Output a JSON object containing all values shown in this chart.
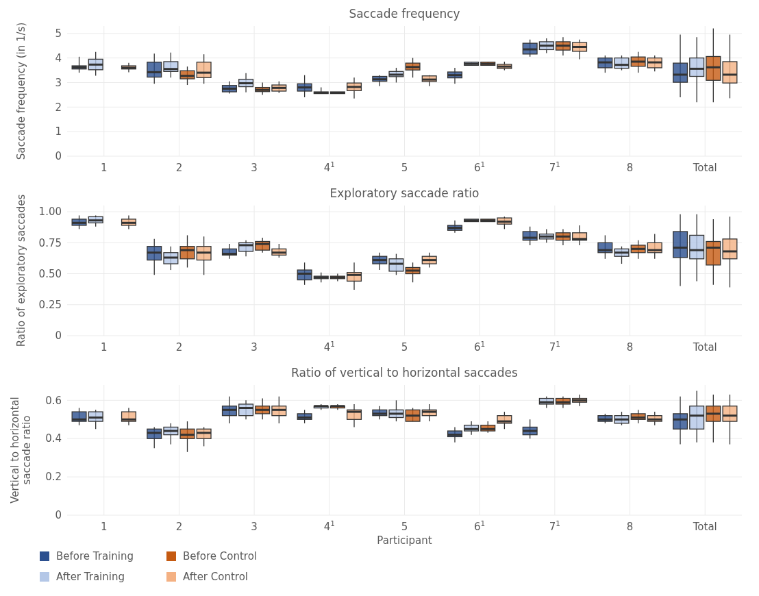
{
  "chart_data": [
    {
      "type": "box",
      "title": "Saccade frequency",
      "ylabel": "Saccade frequency (in 1/s)",
      "categories": [
        "1",
        "2",
        "3",
        "4$^{1}$",
        "5",
        "6$^{1}$",
        "7$^{1}$",
        "8",
        "Total"
      ],
      "ylim": [
        0,
        5.3
      ],
      "yticks": [
        0,
        1,
        2,
        3,
        4,
        5
      ],
      "grid": true,
      "legend": false,
      "series": [
        {
          "color": "#2b4f8f",
          "boxes": [
            {
              "low": 3.4,
              "q1": 3.55,
              "median": 3.62,
              "q3": 3.68,
              "high": 4.05
            },
            {
              "low": 2.95,
              "q1": 3.22,
              "median": 3.42,
              "q3": 3.83,
              "high": 4.18
            },
            {
              "low": 2.55,
              "q1": 2.62,
              "median": 2.75,
              "q3": 2.88,
              "high": 3.05
            },
            {
              "low": 2.4,
              "q1": 2.65,
              "median": 2.8,
              "q3": 2.95,
              "high": 3.3
            },
            {
              "low": 2.85,
              "q1": 3.05,
              "median": 3.13,
              "q3": 3.25,
              "high": 3.3
            },
            {
              "low": 2.95,
              "q1": 3.19,
              "median": 3.3,
              "q3": 3.43,
              "high": 3.6
            },
            {
              "low": 4.05,
              "q1": 4.16,
              "median": 4.35,
              "q3": 4.6,
              "high": 4.75
            },
            {
              "low": 3.4,
              "q1": 3.6,
              "median": 3.82,
              "q3": 4.0,
              "high": 4.1
            },
            {
              "low": 2.4,
              "q1": 3.01,
              "median": 3.32,
              "q3": 3.79,
              "high": 4.95
            }
          ]
        },
        {
          "color": "#b4c7e7",
          "boxes": [
            {
              "low": 3.28,
              "q1": 3.52,
              "median": 3.73,
              "q3": 3.95,
              "high": 4.25
            },
            {
              "low": 3.2,
              "q1": 3.45,
              "median": 3.55,
              "q3": 3.85,
              "high": 4.22
            },
            {
              "low": 2.6,
              "q1": 2.83,
              "median": 2.97,
              "q3": 3.13,
              "high": 3.38
            },
            {
              "low": 2.55,
              "q1": 2.55,
              "median": 2.58,
              "q3": 2.62,
              "high": 2.8
            },
            {
              "low": 3.0,
              "q1": 3.24,
              "median": 3.32,
              "q3": 3.45,
              "high": 3.6
            },
            {
              "low": 3.7,
              "q1": 3.7,
              "median": 3.76,
              "q3": 3.83,
              "high": 3.85
            },
            {
              "low": 4.2,
              "q1": 4.34,
              "median": 4.5,
              "q3": 4.66,
              "high": 4.8
            },
            {
              "low": 3.5,
              "q1": 3.58,
              "median": 3.72,
              "q3": 4.0,
              "high": 4.1
            },
            {
              "low": 2.2,
              "q1": 3.25,
              "median": 3.56,
              "q3": 4.0,
              "high": 4.85
            }
          ]
        },
        {
          "color": "#c55a11",
          "boxes": [
            null,
            {
              "low": 2.9,
              "q1": 3.15,
              "median": 3.27,
              "q3": 3.48,
              "high": 3.65
            },
            {
              "low": 2.5,
              "q1": 2.63,
              "median": 2.7,
              "q3": 2.8,
              "high": 3.0
            },
            {
              "low": 2.55,
              "q1": 2.55,
              "median": 2.58,
              "q3": 2.62,
              "high": 2.62
            },
            {
              "low": 3.2,
              "q1": 3.51,
              "median": 3.63,
              "q3": 3.79,
              "high": 4.0
            },
            {
              "low": 3.7,
              "q1": 3.7,
              "median": 3.76,
              "q3": 3.83,
              "high": 3.85
            },
            {
              "low": 4.1,
              "q1": 4.32,
              "median": 4.5,
              "q3": 4.66,
              "high": 4.85
            },
            {
              "low": 3.4,
              "q1": 3.66,
              "median": 3.85,
              "q3": 4.04,
              "high": 4.25
            },
            {
              "low": 2.2,
              "q1": 3.09,
              "median": 3.62,
              "q3": 4.06,
              "high": 5.2
            }
          ]
        },
        {
          "color": "#f4b183",
          "boxes": [
            {
              "low": 3.42,
              "q1": 3.55,
              "median": 3.6,
              "q3": 3.68,
              "high": 3.8
            },
            {
              "low": 2.95,
              "q1": 3.2,
              "median": 3.4,
              "q3": 3.83,
              "high": 4.15
            },
            {
              "low": 2.57,
              "q1": 2.65,
              "median": 2.78,
              "q3": 2.9,
              "high": 3.05
            },
            {
              "low": 2.35,
              "q1": 2.67,
              "median": 2.82,
              "q3": 2.98,
              "high": 3.2
            },
            {
              "low": 2.85,
              "q1": 3.04,
              "median": 3.12,
              "q3": 3.27,
              "high": 3.3
            },
            {
              "low": 3.5,
              "q1": 3.57,
              "median": 3.65,
              "q3": 3.74,
              "high": 3.85
            },
            {
              "low": 3.95,
              "q1": 4.27,
              "median": 4.45,
              "q3": 4.63,
              "high": 4.75
            },
            {
              "low": 3.45,
              "q1": 3.6,
              "median": 3.82,
              "q3": 4.0,
              "high": 4.1
            },
            {
              "low": 2.36,
              "q1": 2.98,
              "median": 3.32,
              "q3": 3.85,
              "high": 4.95
            }
          ]
        }
      ]
    },
    {
      "type": "box",
      "title": "Exploratory saccade ratio",
      "ylabel": "Ratio of exploratory saccades",
      "categories": [
        "1",
        "2",
        "3",
        "4$^{1}$",
        "5",
        "6$^{1}$",
        "7$^{1}$",
        "8",
        "Total"
      ],
      "ylim": [
        0,
        1.05
      ],
      "yticks": [
        0,
        {
          "value": 0.25,
          "label": "0.25"
        },
        {
          "value": 0.5,
          "label": "0.50"
        },
        {
          "value": 0.75,
          "label": "0.75"
        },
        {
          "value": 1,
          "label": "1.00"
        }
      ],
      "grid": true,
      "legend": false,
      "series": [
        {
          "color": "#2b4f8f",
          "boxes": [
            {
              "low": 0.86,
              "q1": 0.89,
              "median": 0.91,
              "q3": 0.94,
              "high": 0.97
            },
            {
              "low": 0.49,
              "q1": 0.61,
              "median": 0.67,
              "q3": 0.72,
              "high": 0.78
            },
            {
              "low": 0.62,
              "q1": 0.65,
              "median": 0.66,
              "q3": 0.7,
              "high": 0.74
            },
            {
              "low": 0.41,
              "q1": 0.45,
              "median": 0.5,
              "q3": 0.53,
              "high": 0.59
            },
            {
              "low": 0.53,
              "q1": 0.58,
              "median": 0.61,
              "q3": 0.64,
              "high": 0.67
            },
            {
              "low": 0.83,
              "q1": 0.85,
              "median": 0.87,
              "q3": 0.89,
              "high": 0.93
            },
            {
              "low": 0.73,
              "q1": 0.77,
              "median": 0.79,
              "q3": 0.84,
              "high": 0.88
            },
            {
              "low": 0.62,
              "q1": 0.67,
              "median": 0.69,
              "q3": 0.75,
              "high": 0.81
            },
            {
              "low": 0.4,
              "q1": 0.63,
              "median": 0.71,
              "q3": 0.84,
              "high": 0.98
            }
          ]
        },
        {
          "color": "#b4c7e7",
          "boxes": [
            {
              "low": 0.88,
              "q1": 0.91,
              "median": 0.93,
              "q3": 0.96,
              "high": 0.97
            },
            {
              "low": 0.53,
              "q1": 0.58,
              "median": 0.63,
              "q3": 0.67,
              "high": 0.72
            },
            {
              "low": 0.64,
              "q1": 0.68,
              "median": 0.73,
              "q3": 0.75,
              "high": 0.77
            },
            {
              "low": 0.43,
              "q1": 0.46,
              "median": 0.47,
              "q3": 0.48,
              "high": 0.51
            },
            {
              "low": 0.49,
              "q1": 0.52,
              "median": 0.58,
              "q3": 0.62,
              "high": 0.66
            },
            {
              "low": 0.92,
              "q1": 0.92,
              "median": 0.93,
              "q3": 0.94,
              "high": 0.94
            },
            {
              "low": 0.75,
              "q1": 0.78,
              "median": 0.8,
              "q3": 0.82,
              "high": 0.86
            },
            {
              "low": 0.58,
              "q1": 0.64,
              "median": 0.67,
              "q3": 0.7,
              "high": 0.72
            },
            {
              "low": 0.44,
              "q1": 0.62,
              "median": 0.69,
              "q3": 0.81,
              "high": 0.98
            }
          ]
        },
        {
          "color": "#c55a11",
          "boxes": [
            null,
            {
              "low": 0.55,
              "q1": 0.62,
              "median": 0.69,
              "q3": 0.72,
              "high": 0.81
            },
            {
              "low": 0.67,
              "q1": 0.69,
              "median": 0.74,
              "q3": 0.76,
              "high": 0.79
            },
            {
              "low": 0.44,
              "q1": 0.46,
              "median": 0.47,
              "q3": 0.48,
              "high": 0.5
            },
            {
              "low": 0.43,
              "q1": 0.5,
              "median": 0.525,
              "q3": 0.55,
              "high": 0.59
            },
            {
              "low": 0.92,
              "q1": 0.92,
              "median": 0.93,
              "q3": 0.94,
              "high": 0.94
            },
            {
              "low": 0.73,
              "q1": 0.77,
              "median": 0.8,
              "q3": 0.83,
              "high": 0.86
            },
            {
              "low": 0.62,
              "q1": 0.67,
              "median": 0.7,
              "q3": 0.73,
              "high": 0.77
            },
            {
              "low": 0.41,
              "q1": 0.57,
              "median": 0.71,
              "q3": 0.76,
              "high": 0.94
            }
          ]
        },
        {
          "color": "#f4b183",
          "boxes": [
            {
              "low": 0.86,
              "q1": 0.89,
              "median": 0.91,
              "q3": 0.94,
              "high": 0.97
            },
            {
              "low": 0.49,
              "q1": 0.61,
              "median": 0.67,
              "q3": 0.72,
              "high": 0.8
            },
            {
              "low": 0.63,
              "q1": 0.65,
              "median": 0.67,
              "q3": 0.7,
              "high": 0.74
            },
            {
              "low": 0.37,
              "q1": 0.44,
              "median": 0.49,
              "q3": 0.51,
              "high": 0.59
            },
            {
              "low": 0.55,
              "q1": 0.58,
              "median": 0.61,
              "q3": 0.64,
              "high": 0.67
            },
            {
              "low": 0.86,
              "q1": 0.9,
              "median": 0.92,
              "q3": 0.95,
              "high": 0.96
            },
            {
              "low": 0.73,
              "q1": 0.77,
              "median": 0.78,
              "q3": 0.83,
              "high": 0.89
            },
            {
              "low": 0.62,
              "q1": 0.67,
              "median": 0.69,
              "q3": 0.75,
              "high": 0.82
            },
            {
              "low": 0.39,
              "q1": 0.62,
              "median": 0.68,
              "q3": 0.78,
              "high": 0.96
            }
          ]
        }
      ]
    },
    {
      "type": "box",
      "title": "Ratio of vertical to horizontal saccades",
      "ylabel": "Vertical to horizontal saccade ratio",
      "xlabel": "Participant",
      "categories": [
        "1",
        "2",
        "3",
        "4$^{1}$",
        "5",
        "6$^{1}$",
        "7$^{1}$",
        "8",
        "Total"
      ],
      "ylim": [
        0,
        0.68
      ],
      "yticks": [
        0,
        0.2,
        0.4,
        0.6
      ],
      "grid": true,
      "legend": "bottom",
      "series": [
        {
          "name": "Before Training",
          "color": "#2b4f8f",
          "boxes": [
            {
              "low": 0.47,
              "q1": 0.49,
              "median": 0.5,
              "q3": 0.54,
              "high": 0.56
            },
            {
              "low": 0.35,
              "q1": 0.4,
              "median": 0.43,
              "q3": 0.45,
              "high": 0.46
            },
            {
              "low": 0.48,
              "q1": 0.52,
              "median": 0.55,
              "q3": 0.57,
              "high": 0.62
            },
            {
              "low": 0.48,
              "q1": 0.5,
              "median": 0.51,
              "q3": 0.53,
              "high": 0.55
            },
            {
              "low": 0.5,
              "q1": 0.52,
              "median": 0.53,
              "q3": 0.55,
              "high": 0.57
            },
            {
              "low": 0.38,
              "q1": 0.41,
              "median": 0.42,
              "q3": 0.44,
              "high": 0.46
            },
            {
              "low": 0.4,
              "q1": 0.42,
              "median": 0.44,
              "q3": 0.46,
              "high": 0.5
            },
            {
              "low": 0.48,
              "q1": 0.49,
              "median": 0.5,
              "q3": 0.52,
              "high": 0.53
            },
            {
              "low": 0.37,
              "q1": 0.45,
              "median": 0.5,
              "q3": 0.53,
              "high": 0.62
            }
          ]
        },
        {
          "name": "After Training",
          "color": "#b4c7e7",
          "boxes": [
            {
              "low": 0.45,
              "q1": 0.49,
              "median": 0.51,
              "q3": 0.54,
              "high": 0.55
            },
            {
              "low": 0.37,
              "q1": 0.42,
              "median": 0.44,
              "q3": 0.46,
              "high": 0.48
            },
            {
              "low": 0.5,
              "q1": 0.52,
              "median": 0.56,
              "q3": 0.58,
              "high": 0.6
            },
            {
              "low": 0.55,
              "q1": 0.56,
              "median": 0.57,
              "q3": 0.57,
              "high": 0.58
            },
            {
              "low": 0.49,
              "q1": 0.51,
              "median": 0.53,
              "q3": 0.55,
              "high": 0.6
            },
            {
              "low": 0.42,
              "q1": 0.44,
              "median": 0.45,
              "q3": 0.47,
              "high": 0.49
            },
            {
              "low": 0.56,
              "q1": 0.58,
              "median": 0.59,
              "q3": 0.61,
              "high": 0.62
            },
            {
              "low": 0.47,
              "q1": 0.48,
              "median": 0.5,
              "q3": 0.52,
              "high": 0.54
            },
            {
              "low": 0.38,
              "q1": 0.45,
              "median": 0.52,
              "q3": 0.57,
              "high": 0.65
            }
          ]
        },
        {
          "name": "Before Control",
          "color": "#c55a11",
          "boxes": [
            null,
            {
              "low": 0.33,
              "q1": 0.4,
              "median": 0.42,
              "q3": 0.45,
              "high": 0.49
            },
            {
              "low": 0.5,
              "q1": 0.53,
              "median": 0.55,
              "q3": 0.57,
              "high": 0.61
            },
            {
              "low": 0.55,
              "q1": 0.56,
              "median": 0.57,
              "q3": 0.57,
              "high": 0.58
            },
            {
              "low": 0.49,
              "q1": 0.49,
              "median": 0.52,
              "q3": 0.55,
              "high": 0.56
            },
            {
              "low": 0.43,
              "q1": 0.44,
              "median": 0.45,
              "q3": 0.47,
              "high": 0.49
            },
            {
              "low": 0.56,
              "q1": 0.58,
              "median": 0.59,
              "q3": 0.61,
              "high": 0.62
            },
            {
              "low": 0.48,
              "q1": 0.5,
              "median": 0.51,
              "q3": 0.53,
              "high": 0.55
            },
            {
              "low": 0.38,
              "q1": 0.49,
              "median": 0.53,
              "q3": 0.57,
              "high": 0.63
            }
          ]
        },
        {
          "name": "After Control",
          "color": "#f4b183",
          "boxes": [
            {
              "low": 0.47,
              "q1": 0.49,
              "median": 0.5,
              "q3": 0.54,
              "high": 0.56
            },
            {
              "low": 0.36,
              "q1": 0.4,
              "median": 0.43,
              "q3": 0.45,
              "high": 0.46
            },
            {
              "low": 0.48,
              "q1": 0.52,
              "median": 0.55,
              "q3": 0.57,
              "high": 0.62
            },
            {
              "low": 0.46,
              "q1": 0.5,
              "median": 0.54,
              "q3": 0.55,
              "high": 0.58
            },
            {
              "low": 0.49,
              "q1": 0.52,
              "median": 0.54,
              "q3": 0.55,
              "high": 0.58
            },
            {
              "low": 0.45,
              "q1": 0.48,
              "median": 0.49,
              "q3": 0.52,
              "high": 0.54
            },
            {
              "low": 0.57,
              "q1": 0.59,
              "median": 0.6,
              "q3": 0.61,
              "high": 0.63
            },
            {
              "low": 0.47,
              "q1": 0.49,
              "median": 0.5,
              "q3": 0.52,
              "high": 0.54
            },
            {
              "low": 0.37,
              "q1": 0.49,
              "median": 0.52,
              "q3": 0.57,
              "high": 0.63
            }
          ]
        }
      ]
    }
  ]
}
